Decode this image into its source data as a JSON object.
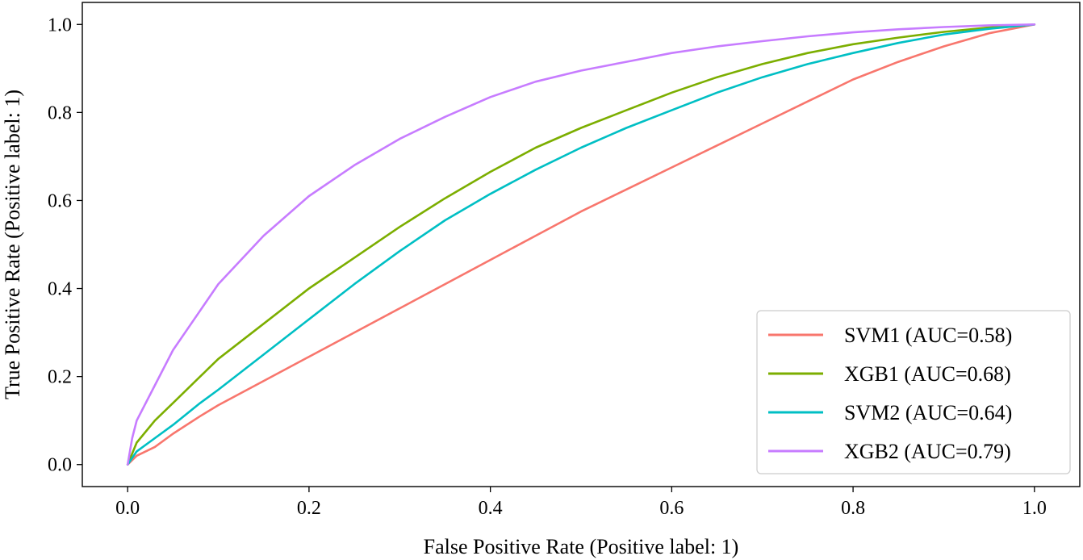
{
  "chart_data": {
    "type": "line",
    "title": "",
    "xlabel": "False Positive Rate (Positive label: 1)",
    "ylabel": "True Positive Rate (Positive label: 1)",
    "xlim": [
      -0.05,
      1.05
    ],
    "ylim": [
      -0.05,
      1.05
    ],
    "xticks": [
      "0.0",
      "0.2",
      "0.4",
      "0.6",
      "0.8",
      "1.0"
    ],
    "yticks": [
      "0.0",
      "0.2",
      "0.4",
      "0.6",
      "0.8",
      "1.0"
    ],
    "grid": false,
    "legend_position": "lower-right",
    "series": [
      {
        "name": "SVM1 (AUC=0.58)",
        "color": "#f8766d",
        "points": [
          [
            0,
            0
          ],
          [
            0.01,
            0.02
          ],
          [
            0.03,
            0.04
          ],
          [
            0.05,
            0.07
          ],
          [
            0.08,
            0.11
          ],
          [
            0.1,
            0.135
          ],
          [
            0.15,
            0.19
          ],
          [
            0.2,
            0.245
          ],
          [
            0.25,
            0.3
          ],
          [
            0.3,
            0.355
          ],
          [
            0.35,
            0.41
          ],
          [
            0.4,
            0.465
          ],
          [
            0.45,
            0.52
          ],
          [
            0.5,
            0.575
          ],
          [
            0.55,
            0.625
          ],
          [
            0.6,
            0.675
          ],
          [
            0.65,
            0.725
          ],
          [
            0.7,
            0.775
          ],
          [
            0.75,
            0.825
          ],
          [
            0.8,
            0.875
          ],
          [
            0.85,
            0.915
          ],
          [
            0.9,
            0.95
          ],
          [
            0.95,
            0.98
          ],
          [
            1,
            1
          ]
        ]
      },
      {
        "name": "XGB1 (AUC=0.68)",
        "color": "#7cae00",
        "points": [
          [
            0,
            0
          ],
          [
            0.01,
            0.05
          ],
          [
            0.03,
            0.1
          ],
          [
            0.05,
            0.14
          ],
          [
            0.08,
            0.2
          ],
          [
            0.1,
            0.24
          ],
          [
            0.15,
            0.32
          ],
          [
            0.2,
            0.4
          ],
          [
            0.25,
            0.47
          ],
          [
            0.3,
            0.54
          ],
          [
            0.35,
            0.605
          ],
          [
            0.4,
            0.665
          ],
          [
            0.45,
            0.72
          ],
          [
            0.5,
            0.765
          ],
          [
            0.55,
            0.805
          ],
          [
            0.6,
            0.845
          ],
          [
            0.65,
            0.88
          ],
          [
            0.7,
            0.91
          ],
          [
            0.75,
            0.935
          ],
          [
            0.8,
            0.955
          ],
          [
            0.85,
            0.97
          ],
          [
            0.9,
            0.983
          ],
          [
            0.95,
            0.993
          ],
          [
            1,
            1
          ]
        ]
      },
      {
        "name": "SVM2 (AUC=0.64)",
        "color": "#00bfc4",
        "points": [
          [
            0,
            0
          ],
          [
            0.01,
            0.03
          ],
          [
            0.03,
            0.06
          ],
          [
            0.05,
            0.09
          ],
          [
            0.08,
            0.14
          ],
          [
            0.1,
            0.17
          ],
          [
            0.15,
            0.25
          ],
          [
            0.2,
            0.33
          ],
          [
            0.25,
            0.41
          ],
          [
            0.3,
            0.485
          ],
          [
            0.35,
            0.555
          ],
          [
            0.4,
            0.615
          ],
          [
            0.45,
            0.67
          ],
          [
            0.5,
            0.72
          ],
          [
            0.55,
            0.765
          ],
          [
            0.6,
            0.805
          ],
          [
            0.65,
            0.845
          ],
          [
            0.7,
            0.88
          ],
          [
            0.75,
            0.91
          ],
          [
            0.8,
            0.935
          ],
          [
            0.85,
            0.958
          ],
          [
            0.9,
            0.977
          ],
          [
            0.95,
            0.99
          ],
          [
            1,
            1
          ]
        ]
      },
      {
        "name": "XGB2 (AUC=0.79)",
        "color": "#c77cff",
        "points": [
          [
            0,
            0
          ],
          [
            0.005,
            0.06
          ],
          [
            0.01,
            0.1
          ],
          [
            0.03,
            0.18
          ],
          [
            0.05,
            0.26
          ],
          [
            0.08,
            0.35
          ],
          [
            0.1,
            0.41
          ],
          [
            0.15,
            0.52
          ],
          [
            0.2,
            0.61
          ],
          [
            0.25,
            0.68
          ],
          [
            0.3,
            0.74
          ],
          [
            0.35,
            0.79
          ],
          [
            0.4,
            0.835
          ],
          [
            0.45,
            0.87
          ],
          [
            0.5,
            0.895
          ],
          [
            0.55,
            0.915
          ],
          [
            0.6,
            0.935
          ],
          [
            0.65,
            0.95
          ],
          [
            0.7,
            0.962
          ],
          [
            0.75,
            0.973
          ],
          [
            0.8,
            0.982
          ],
          [
            0.85,
            0.989
          ],
          [
            0.9,
            0.994
          ],
          [
            0.95,
            0.998
          ],
          [
            1,
            1
          ]
        ]
      }
    ]
  }
}
